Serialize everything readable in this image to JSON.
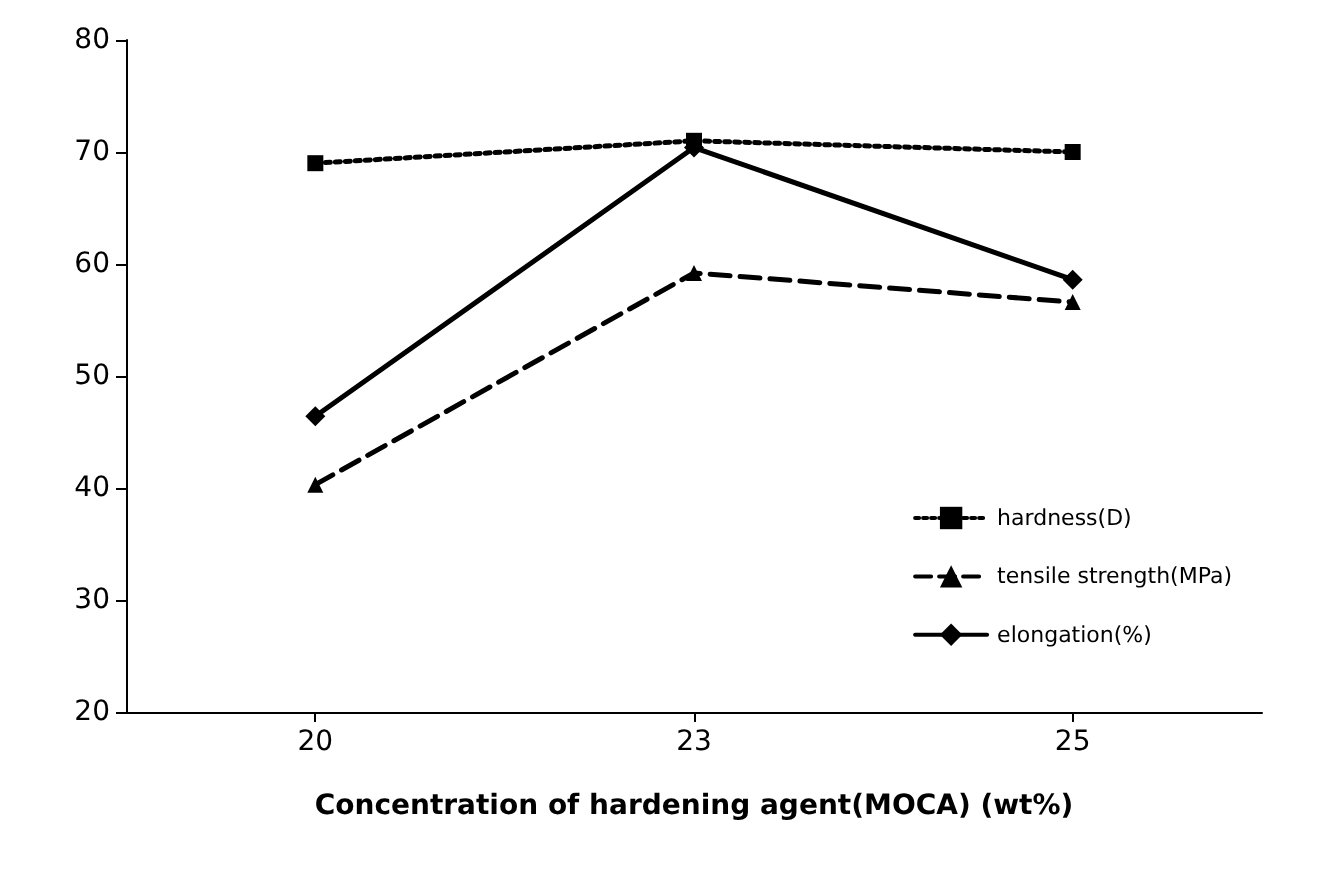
{
  "chart_data": {
    "type": "line",
    "xlabel": "Concentration of hardening agent(MOCA) (wt%)",
    "categories": [
      "20",
      "23",
      "25"
    ],
    "series": [
      {
        "name": "hardness(D)",
        "color": "#000000",
        "values": [
          69,
          71,
          70
        ],
        "marker": "square",
        "line_style": "dotted"
      },
      {
        "name": "tensile strength(MPa)",
        "color": "#000000",
        "values": [
          40.3,
          59.2,
          56.6
        ],
        "marker": "triangle",
        "line_style": "dashed"
      },
      {
        "name": "elongation(%)",
        "color": "#000000",
        "values": [
          46.4,
          70.4,
          58.6
        ],
        "marker": "diamond",
        "line_style": "solid"
      }
    ],
    "ylim": [
      20,
      80
    ],
    "yticks": [
      20,
      30,
      40,
      50,
      60,
      70,
      80
    ],
    "grid": false,
    "legend": "bottom right"
  }
}
